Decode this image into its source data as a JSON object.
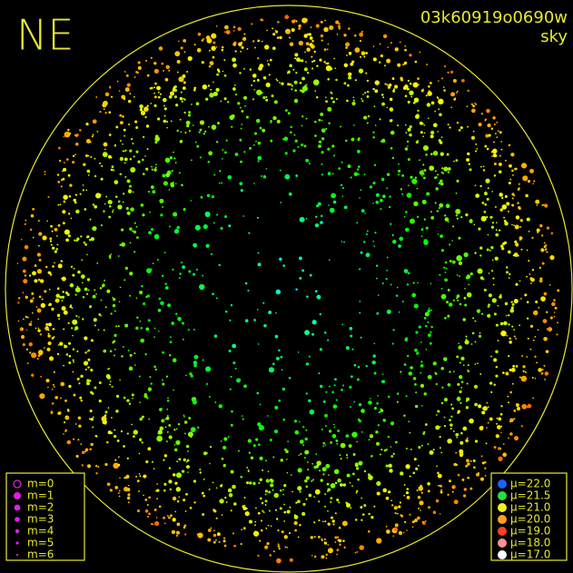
{
  "header": {
    "direction": "NE",
    "frame_id": "03k60919o0690w",
    "mode": "sky"
  },
  "magnitude_legend": {
    "color": "#e020e0",
    "items": [
      {
        "label": "m=0",
        "open": true,
        "size": 4
      },
      {
        "label": "m=1",
        "size": 4
      },
      {
        "label": "m=2",
        "size": 3.4
      },
      {
        "label": "m=3",
        "size": 2.8
      },
      {
        "label": "m=4",
        "size": 2.2
      },
      {
        "label": "m=5",
        "size": 1.6
      },
      {
        "label": "m=6",
        "size": 1.1
      }
    ]
  },
  "brightness_legend": {
    "items": [
      {
        "label": "μ=22.0",
        "color": "#2060ff"
      },
      {
        "label": "μ=21.5",
        "color": "#20e040"
      },
      {
        "label": "μ=21.0",
        "color": "#f0f020"
      },
      {
        "label": "μ=20.0",
        "color": "#ffa020"
      },
      {
        "label": "μ=19.0",
        "color": "#ff4020"
      },
      {
        "label": "μ=18.0",
        "color": "#ff9090"
      },
      {
        "label": "μ=17.0",
        "color": "#ffffff"
      }
    ]
  }
}
